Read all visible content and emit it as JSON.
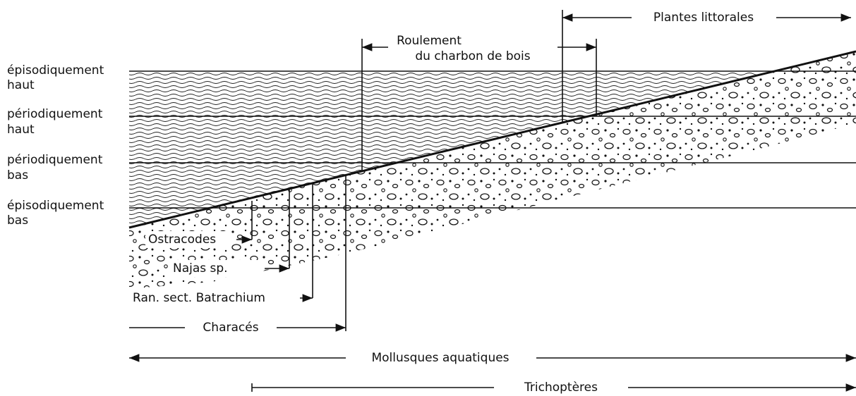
{
  "levels": [
    {
      "line1": "épisodiquement",
      "line2": "haut"
    },
    {
      "line1": "périodiquement",
      "line2": "haut"
    },
    {
      "line1": "périodiquement",
      "line2": "bas"
    },
    {
      "line1": "épisodiquement",
      "line2": "bas"
    }
  ],
  "zones": {
    "plantes": "Plantes littorales",
    "roulement1": "Roulement",
    "roulement2": "du charbon de bois",
    "ostracodes": "Ostracodes",
    "najas": "Najas sp.",
    "ranunculus": "Ran. sect. Batrachium",
    "characes": "Characés",
    "mollusques": "Mollusques aquatiques",
    "trichopteres": "Trichoptères"
  }
}
